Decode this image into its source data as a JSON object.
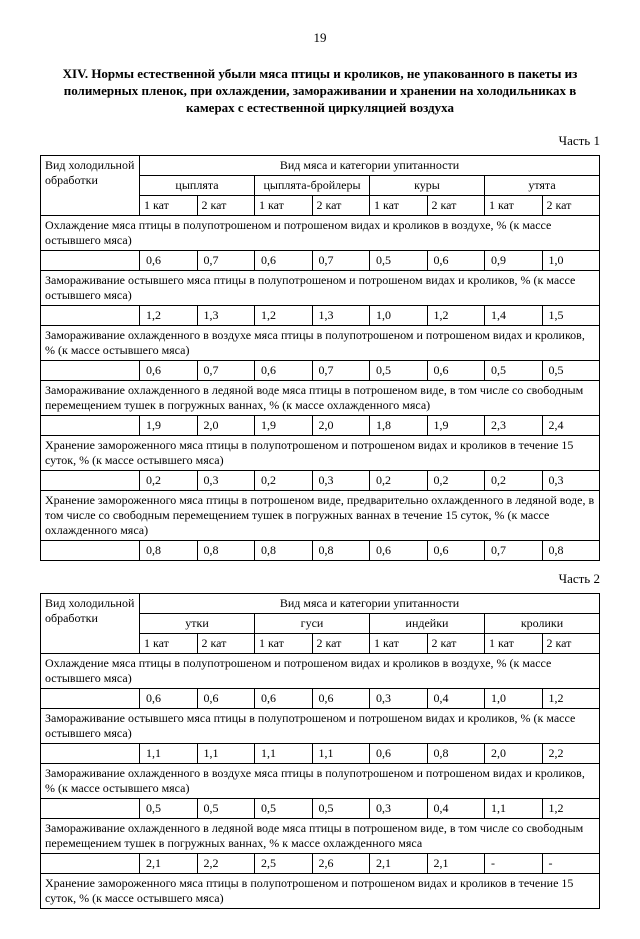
{
  "page_number": "19",
  "title": "XIV. Нормы естественной убыли мяса птицы и кроликов, не упакованного в пакеты из полимерных пленок, при охлаждении, замораживании и хранении на холодильниках в камерах с естественной циркуляцией воздуха",
  "part1_label": "Часть 1",
  "part2_label": "Часть 2",
  "header_left": "Вид холодильной обработки",
  "header_top": "Вид мяса и категории упитанности",
  "kat1": "1 кат",
  "kat2": "2 кат",
  "part1": {
    "groups": [
      "цыплята",
      "цыплята-бройлеры",
      "куры",
      "утята"
    ],
    "sections": [
      {
        "label": "Охлаждение мяса птицы в полупотрошеном и потрошеном видах и кроликов в воздухе, % (к массе остывшего мяса)",
        "values": [
          "0,6",
          "0,7",
          "0,6",
          "0,7",
          "0,5",
          "0,6",
          "0,9",
          "1,0"
        ]
      },
      {
        "label": "Замораживание остывшего мяса птицы в полупотрошеном и потрошеном видах и кроликов, % (к массе остывшего мяса)",
        "values": [
          "1,2",
          "1,3",
          "1,2",
          "1,3",
          "1,0",
          "1,2",
          "1,4",
          "1,5"
        ]
      },
      {
        "label": "Замораживание охлажденного в воздухе мяса птицы в полупотрошеном и потрошеном видах и кроликов, % (к массе остывшего мяса)",
        "values": [
          "0,6",
          "0,7",
          "0,6",
          "0,7",
          "0,5",
          "0,6",
          "0,5",
          "0,5"
        ]
      },
      {
        "label": "Замораживание охлажденного в ледяной воде мяса птицы в потрошеном виде, в том числе со свободным перемещением тушек в погружных ваннах, % (к массе охлажденного мяса)",
        "values": [
          "1,9",
          "2,0",
          "1,9",
          "2,0",
          "1,8",
          "1,9",
          "2,3",
          "2,4"
        ]
      },
      {
        "label": "Хранение замороженного мяса птицы в полупотрошеном и потрошеном видах и кроликов в течение 15 суток, % (к массе остывшего мяса)",
        "values": [
          "0,2",
          "0,3",
          "0,2",
          "0,3",
          "0,2",
          "0,2",
          "0,2",
          "0,3"
        ]
      },
      {
        "label": "Хранение замороженного мяса птицы в потрошеном виде, предварительно охлажденного в ледяной воде, в том числе со свободным перемещением тушек в погружных ваннах в течение 15 суток, % (к массе охлажденного мяса)",
        "values": [
          "0,8",
          "0,8",
          "0,8",
          "0,8",
          "0,6",
          "0,6",
          "0,7",
          "0,8"
        ]
      }
    ]
  },
  "part2": {
    "groups": [
      "утки",
      "гуси",
      "индейки",
      "кролики"
    ],
    "sections": [
      {
        "label": "Охлаждение мяса птицы в полупотрошеном и потрошеном видах и кроликов в воздухе, % (к массе остывшего мяса)",
        "values": [
          "0,6",
          "0,6",
          "0,6",
          "0,6",
          "0,3",
          "0,4",
          "1,0",
          "1,2"
        ]
      },
      {
        "label": "Замораживание остывшего мяса птицы в полупотрошеном и потрошеном видах и кроликов, % (к массе остывшего мяса)",
        "values": [
          "1,1",
          "1,1",
          "1,1",
          "1,1",
          "0,6",
          "0,8",
          "2,0",
          "2,2"
        ]
      },
      {
        "label": "Замораживание охлажденного в воздухе мяса птицы в полупотрошеном и потрошеном видах и кроликов, % (к массе остывшего мяса)",
        "values": [
          "0,5",
          "0,5",
          "0,5",
          "0,5",
          "0,3",
          "0,4",
          "1,1",
          "1,2"
        ]
      },
      {
        "label": "Замораживание охлажденного в ледяной воде мяса птицы в потрошеном виде, в том числе со свободным перемещением тушек в погружных ваннах, % к массе охлажденного мяса",
        "values": [
          "2,1",
          "2,2",
          "2,5",
          "2,6",
          "2,1",
          "2,1",
          "-",
          "-"
        ]
      },
      {
        "label": "Хранение замороженного мяса птицы в полупотрошеном и потрошеном видах и кроликов в течение 15 суток, % (к массе остывшего мяса)",
        "values": []
      }
    ]
  }
}
